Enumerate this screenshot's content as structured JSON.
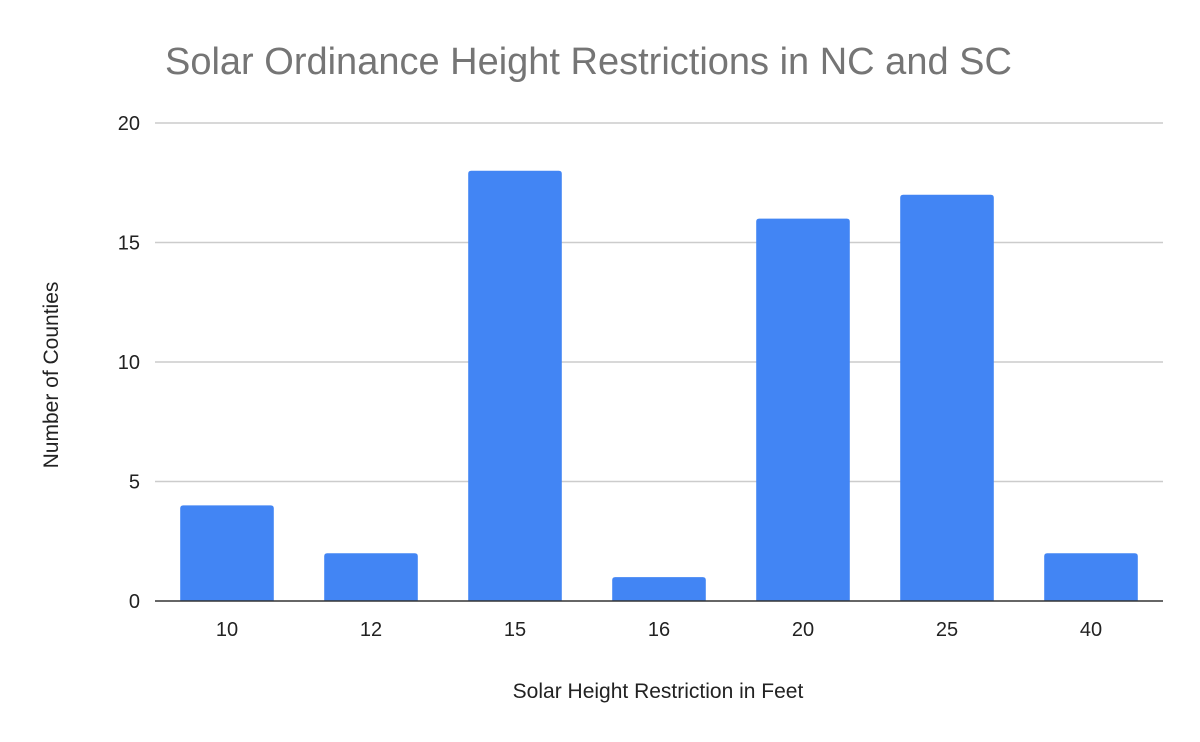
{
  "chart_data": {
    "type": "bar",
    "title": "Solar Ordinance Height Restrictions in NC and SC",
    "xlabel": "Solar Height Restriction in Feet",
    "ylabel": "Number of Counties",
    "categories": [
      "10",
      "12",
      "15",
      "16",
      "20",
      "25",
      "40"
    ],
    "values": [
      4,
      2,
      18,
      1,
      16,
      17,
      2
    ],
    "ylim": [
      0,
      20
    ],
    "yticks": [
      "0",
      "5",
      "10",
      "15",
      "20"
    ],
    "grid": true,
    "legend": "none",
    "bar_color": "#4285f4"
  }
}
